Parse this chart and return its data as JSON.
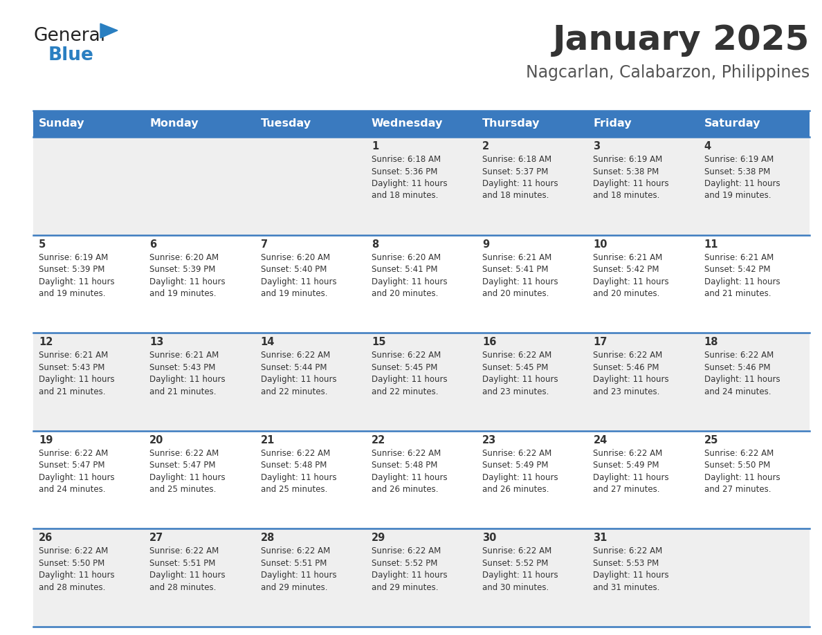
{
  "title": "January 2025",
  "subtitle": "Nagcarlan, Calabarzon, Philippines",
  "days_of_week": [
    "Sunday",
    "Monday",
    "Tuesday",
    "Wednesday",
    "Thursday",
    "Friday",
    "Saturday"
  ],
  "header_bg": "#3a7abf",
  "header_text": "#ffffff",
  "row_bg": [
    "#efefef",
    "#ffffff",
    "#efefef",
    "#ffffff",
    "#efefef"
  ],
  "cell_text": "#333333",
  "border_color": "#3a7abf",
  "title_color": "#333333",
  "subtitle_color": "#555555",
  "logo_general_color": "#222222",
  "logo_blue_color": "#2a7fc1",
  "calendar_data": [
    {
      "day": 1,
      "col": 3,
      "row": 0,
      "sunrise": "6:18 AM",
      "sunset": "5:36 PM",
      "daylight_hours": 11,
      "daylight_minutes": 18
    },
    {
      "day": 2,
      "col": 4,
      "row": 0,
      "sunrise": "6:18 AM",
      "sunset": "5:37 PM",
      "daylight_hours": 11,
      "daylight_minutes": 18
    },
    {
      "day": 3,
      "col": 5,
      "row": 0,
      "sunrise": "6:19 AM",
      "sunset": "5:38 PM",
      "daylight_hours": 11,
      "daylight_minutes": 18
    },
    {
      "day": 4,
      "col": 6,
      "row": 0,
      "sunrise": "6:19 AM",
      "sunset": "5:38 PM",
      "daylight_hours": 11,
      "daylight_minutes": 19
    },
    {
      "day": 5,
      "col": 0,
      "row": 1,
      "sunrise": "6:19 AM",
      "sunset": "5:39 PM",
      "daylight_hours": 11,
      "daylight_minutes": 19
    },
    {
      "day": 6,
      "col": 1,
      "row": 1,
      "sunrise": "6:20 AM",
      "sunset": "5:39 PM",
      "daylight_hours": 11,
      "daylight_minutes": 19
    },
    {
      "day": 7,
      "col": 2,
      "row": 1,
      "sunrise": "6:20 AM",
      "sunset": "5:40 PM",
      "daylight_hours": 11,
      "daylight_minutes": 19
    },
    {
      "day": 8,
      "col": 3,
      "row": 1,
      "sunrise": "6:20 AM",
      "sunset": "5:41 PM",
      "daylight_hours": 11,
      "daylight_minutes": 20
    },
    {
      "day": 9,
      "col": 4,
      "row": 1,
      "sunrise": "6:21 AM",
      "sunset": "5:41 PM",
      "daylight_hours": 11,
      "daylight_minutes": 20
    },
    {
      "day": 10,
      "col": 5,
      "row": 1,
      "sunrise": "6:21 AM",
      "sunset": "5:42 PM",
      "daylight_hours": 11,
      "daylight_minutes": 20
    },
    {
      "day": 11,
      "col": 6,
      "row": 1,
      "sunrise": "6:21 AM",
      "sunset": "5:42 PM",
      "daylight_hours": 11,
      "daylight_minutes": 21
    },
    {
      "day": 12,
      "col": 0,
      "row": 2,
      "sunrise": "6:21 AM",
      "sunset": "5:43 PM",
      "daylight_hours": 11,
      "daylight_minutes": 21
    },
    {
      "day": 13,
      "col": 1,
      "row": 2,
      "sunrise": "6:21 AM",
      "sunset": "5:43 PM",
      "daylight_hours": 11,
      "daylight_minutes": 21
    },
    {
      "day": 14,
      "col": 2,
      "row": 2,
      "sunrise": "6:22 AM",
      "sunset": "5:44 PM",
      "daylight_hours": 11,
      "daylight_minutes": 22
    },
    {
      "day": 15,
      "col": 3,
      "row": 2,
      "sunrise": "6:22 AM",
      "sunset": "5:45 PM",
      "daylight_hours": 11,
      "daylight_minutes": 22
    },
    {
      "day": 16,
      "col": 4,
      "row": 2,
      "sunrise": "6:22 AM",
      "sunset": "5:45 PM",
      "daylight_hours": 11,
      "daylight_minutes": 23
    },
    {
      "day": 17,
      "col": 5,
      "row": 2,
      "sunrise": "6:22 AM",
      "sunset": "5:46 PM",
      "daylight_hours": 11,
      "daylight_minutes": 23
    },
    {
      "day": 18,
      "col": 6,
      "row": 2,
      "sunrise": "6:22 AM",
      "sunset": "5:46 PM",
      "daylight_hours": 11,
      "daylight_minutes": 24
    },
    {
      "day": 19,
      "col": 0,
      "row": 3,
      "sunrise": "6:22 AM",
      "sunset": "5:47 PM",
      "daylight_hours": 11,
      "daylight_minutes": 24
    },
    {
      "day": 20,
      "col": 1,
      "row": 3,
      "sunrise": "6:22 AM",
      "sunset": "5:47 PM",
      "daylight_hours": 11,
      "daylight_minutes": 25
    },
    {
      "day": 21,
      "col": 2,
      "row": 3,
      "sunrise": "6:22 AM",
      "sunset": "5:48 PM",
      "daylight_hours": 11,
      "daylight_minutes": 25
    },
    {
      "day": 22,
      "col": 3,
      "row": 3,
      "sunrise": "6:22 AM",
      "sunset": "5:48 PM",
      "daylight_hours": 11,
      "daylight_minutes": 26
    },
    {
      "day": 23,
      "col": 4,
      "row": 3,
      "sunrise": "6:22 AM",
      "sunset": "5:49 PM",
      "daylight_hours": 11,
      "daylight_minutes": 26
    },
    {
      "day": 24,
      "col": 5,
      "row": 3,
      "sunrise": "6:22 AM",
      "sunset": "5:49 PM",
      "daylight_hours": 11,
      "daylight_minutes": 27
    },
    {
      "day": 25,
      "col": 6,
      "row": 3,
      "sunrise": "6:22 AM",
      "sunset": "5:50 PM",
      "daylight_hours": 11,
      "daylight_minutes": 27
    },
    {
      "day": 26,
      "col": 0,
      "row": 4,
      "sunrise": "6:22 AM",
      "sunset": "5:50 PM",
      "daylight_hours": 11,
      "daylight_minutes": 28
    },
    {
      "day": 27,
      "col": 1,
      "row": 4,
      "sunrise": "6:22 AM",
      "sunset": "5:51 PM",
      "daylight_hours": 11,
      "daylight_minutes": 28
    },
    {
      "day": 28,
      "col": 2,
      "row": 4,
      "sunrise": "6:22 AM",
      "sunset": "5:51 PM",
      "daylight_hours": 11,
      "daylight_minutes": 29
    },
    {
      "day": 29,
      "col": 3,
      "row": 4,
      "sunrise": "6:22 AM",
      "sunset": "5:52 PM",
      "daylight_hours": 11,
      "daylight_minutes": 29
    },
    {
      "day": 30,
      "col": 4,
      "row": 4,
      "sunrise": "6:22 AM",
      "sunset": "5:52 PM",
      "daylight_hours": 11,
      "daylight_minutes": 30
    },
    {
      "day": 31,
      "col": 5,
      "row": 4,
      "sunrise": "6:22 AM",
      "sunset": "5:53 PM",
      "daylight_hours": 11,
      "daylight_minutes": 31
    }
  ]
}
